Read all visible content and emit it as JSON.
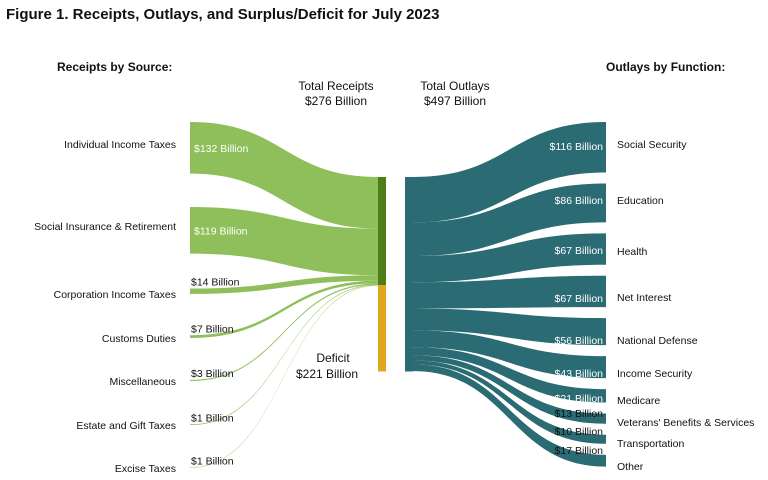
{
  "title": "Figure 1. Receipts, Outlays, and Surplus/Deficit for July 2023",
  "chart_data": {
    "type": "sankey",
    "title": "Figure 1. Receipts, Outlays, and Surplus/Deficit for July 2023",
    "receipts": {
      "header": "Receipts by Source:",
      "total_label": "Total Receipts",
      "total_value": "$276 Billion",
      "total_billions": 276,
      "color": "#8ebf5a",
      "node_color": "#4e7e18",
      "sources": [
        {
          "name": "Individual Income Taxes",
          "value": 132,
          "label": "$132 Billion"
        },
        {
          "name": "Social Insurance & Retirement",
          "value": 119,
          "label": "$119 Billion"
        },
        {
          "name": "Corporation Income Taxes",
          "value": 14,
          "label": "$14 Billion"
        },
        {
          "name": "Customs Duties",
          "value": 7,
          "label": "$7 Billion"
        },
        {
          "name": "Miscellaneous",
          "value": 3,
          "label": "$3 Billion"
        },
        {
          "name": "Estate and Gift Taxes",
          "value": 1,
          "label": "$1 Billion"
        },
        {
          "name": "Excise Taxes",
          "value": 1,
          "label": "$1 Billion"
        }
      ]
    },
    "deficit": {
      "label": "Deficit",
      "value_label": "$221 Billion",
      "value": 221,
      "color": "#e0a81c"
    },
    "outlays": {
      "header": "Outlays by Function:",
      "total_label": "Total Outlays",
      "total_value": "$497 Billion",
      "total_billions": 497,
      "color": "#2b6b73",
      "functions": [
        {
          "name": "Social Security",
          "value": 116,
          "label": "$116 Billion"
        },
        {
          "name": "Education",
          "value": 86,
          "label": "$86 Billion"
        },
        {
          "name": "Health",
          "value": 67,
          "label": "$67 Billion"
        },
        {
          "name": "Net Interest",
          "value": 67,
          "label": "$67 Billion"
        },
        {
          "name": "National Defense",
          "value": 56,
          "label": "$56 Billion"
        },
        {
          "name": "Income Security",
          "value": 43,
          "label": "$43 Billion"
        },
        {
          "name": "Medicare",
          "value": 21,
          "label": "$21 Billion"
        },
        {
          "name": "Veterans' Benefits & Services",
          "value": 13,
          "label": "$13 Billion"
        },
        {
          "name": "Transportation",
          "value": 10,
          "label": "$10 Billion"
        },
        {
          "name": "Other",
          "value": 17,
          "label": "$17 Billion"
        }
      ]
    }
  }
}
